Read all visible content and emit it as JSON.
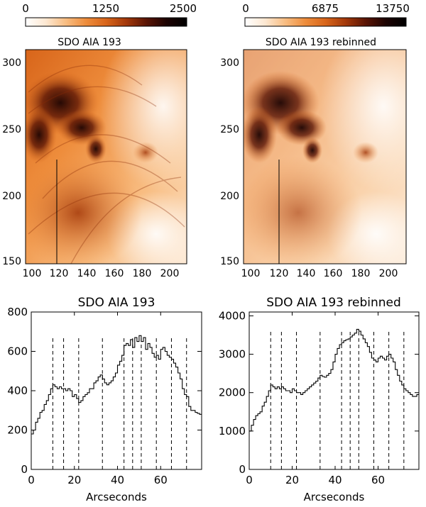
{
  "colors": {
    "cmap_stops": [
      "#ffffff",
      "#fde8d2",
      "#f8bd82",
      "#ee8d3c",
      "#d8651a",
      "#a3380a",
      "#5a1404",
      "#1c0302",
      "#000000"
    ]
  },
  "panels": [
    {
      "id": "left",
      "colorbar": {
        "ticks": [
          "0",
          "1250",
          "2500"
        ],
        "min": 0,
        "max": 2500
      },
      "image_title": "SDO AIA 193",
      "x_ticks": [
        "100",
        "120",
        "140",
        "160",
        "180",
        "200"
      ],
      "y_ticks": [
        "300",
        "250",
        "200",
        "150"
      ]
    },
    {
      "id": "right",
      "colorbar": {
        "ticks": [
          "0",
          "6875",
          "13750"
        ],
        "min": 0,
        "max": 13750
      },
      "image_title": "SDO AIA 193 rebinned",
      "x_ticks": [
        "100",
        "120",
        "140",
        "160",
        "180",
        "200"
      ],
      "y_ticks": [
        "300",
        "250",
        "200",
        "150"
      ]
    }
  ],
  "chart_data": [
    {
      "type": "line",
      "title": "SDO AIA 193",
      "xlabel": "Arcseconds",
      "ylabel": "",
      "xlim": [
        0,
        79
      ],
      "ylim": [
        0,
        800
      ],
      "x_ticks": [
        0,
        20,
        40,
        60
      ],
      "y_ticks": [
        0,
        200,
        400,
        600,
        800
      ],
      "dashed_lines_x": [
        10,
        15,
        22,
        33,
        43,
        47,
        51,
        58,
        65,
        72
      ],
      "dashed_top": 680,
      "series": [
        {
          "x": [
            0,
            1,
            2,
            3,
            4,
            5,
            6,
            7,
            8,
            9,
            10,
            11,
            12,
            13,
            14,
            15,
            16,
            17,
            18,
            19,
            20,
            21,
            22,
            23,
            24,
            25,
            26,
            27,
            28,
            29,
            30,
            31,
            32,
            33,
            34,
            35,
            36,
            37,
            38,
            39,
            40,
            41,
            42,
            43,
            44,
            45,
            46,
            47,
            48,
            49,
            50,
            51,
            52,
            53,
            54,
            55,
            56,
            57,
            58,
            59,
            60,
            61,
            62,
            63,
            64,
            65,
            66,
            67,
            68,
            69,
            70,
            71,
            72,
            73,
            74,
            75,
            76,
            77,
            78
          ],
          "y": [
            180,
            200,
            240,
            260,
            290,
            300,
            330,
            350,
            380,
            410,
            430,
            420,
            410,
            420,
            410,
            410,
            400,
            410,
            400,
            370,
            380,
            360,
            340,
            350,
            370,
            380,
            390,
            410,
            410,
            440,
            450,
            470,
            480,
            460,
            440,
            430,
            440,
            450,
            470,
            490,
            530,
            550,
            580,
            630,
            640,
            630,
            660,
            620,
            670,
            650,
            680,
            650,
            670,
            610,
            640,
            620,
            590,
            570,
            580,
            560,
            610,
            620,
            600,
            580,
            570,
            560,
            540,
            520,
            490,
            460,
            410,
            380,
            370,
            320,
            300,
            300,
            290,
            285,
            280
          ]
        }
      ]
    },
    {
      "type": "line",
      "title": "SDO AIA 193 rebinned",
      "xlabel": "Arcseconds",
      "ylabel": "",
      "xlim": [
        0,
        79
      ],
      "ylim": [
        0,
        4100
      ],
      "x_ticks": [
        0,
        20,
        40,
        60
      ],
      "y_ticks": [
        0,
        1000,
        2000,
        3000,
        4000
      ],
      "dashed_lines_x": [
        10,
        15,
        22,
        33,
        43,
        47,
        51,
        58,
        65,
        72
      ],
      "dashed_top": 3650,
      "series": [
        {
          "x": [
            0,
            1,
            2,
            3,
            4,
            5,
            6,
            7,
            8,
            9,
            10,
            11,
            12,
            13,
            14,
            15,
            16,
            17,
            18,
            19,
            20,
            21,
            22,
            23,
            24,
            25,
            26,
            27,
            28,
            29,
            30,
            31,
            32,
            33,
            34,
            35,
            36,
            37,
            38,
            39,
            40,
            41,
            42,
            43,
            44,
            45,
            46,
            47,
            48,
            49,
            50,
            51,
            52,
            53,
            54,
            55,
            56,
            57,
            58,
            59,
            60,
            61,
            62,
            63,
            64,
            65,
            66,
            67,
            68,
            69,
            70,
            71,
            72,
            73,
            74,
            75,
            76,
            77,
            78
          ],
          "y": [
            1000,
            1150,
            1300,
            1400,
            1450,
            1500,
            1650,
            1750,
            1900,
            2050,
            2200,
            2150,
            2100,
            2150,
            2100,
            2150,
            2100,
            2050,
            2050,
            2000,
            2100,
            2050,
            2000,
            2000,
            1950,
            2000,
            2050,
            2100,
            2150,
            2200,
            2250,
            2300,
            2380,
            2450,
            2420,
            2400,
            2450,
            2500,
            2600,
            2800,
            3000,
            3150,
            3250,
            3300,
            3350,
            3380,
            3400,
            3450,
            3500,
            3550,
            3650,
            3600,
            3500,
            3400,
            3300,
            3200,
            3050,
            2900,
            2850,
            2800,
            2900,
            2950,
            2900,
            2850,
            2950,
            3000,
            2900,
            2800,
            2600,
            2450,
            2300,
            2200,
            2100,
            2050,
            2000,
            1950,
            1900,
            1900,
            1950
          ]
        }
      ]
    }
  ]
}
